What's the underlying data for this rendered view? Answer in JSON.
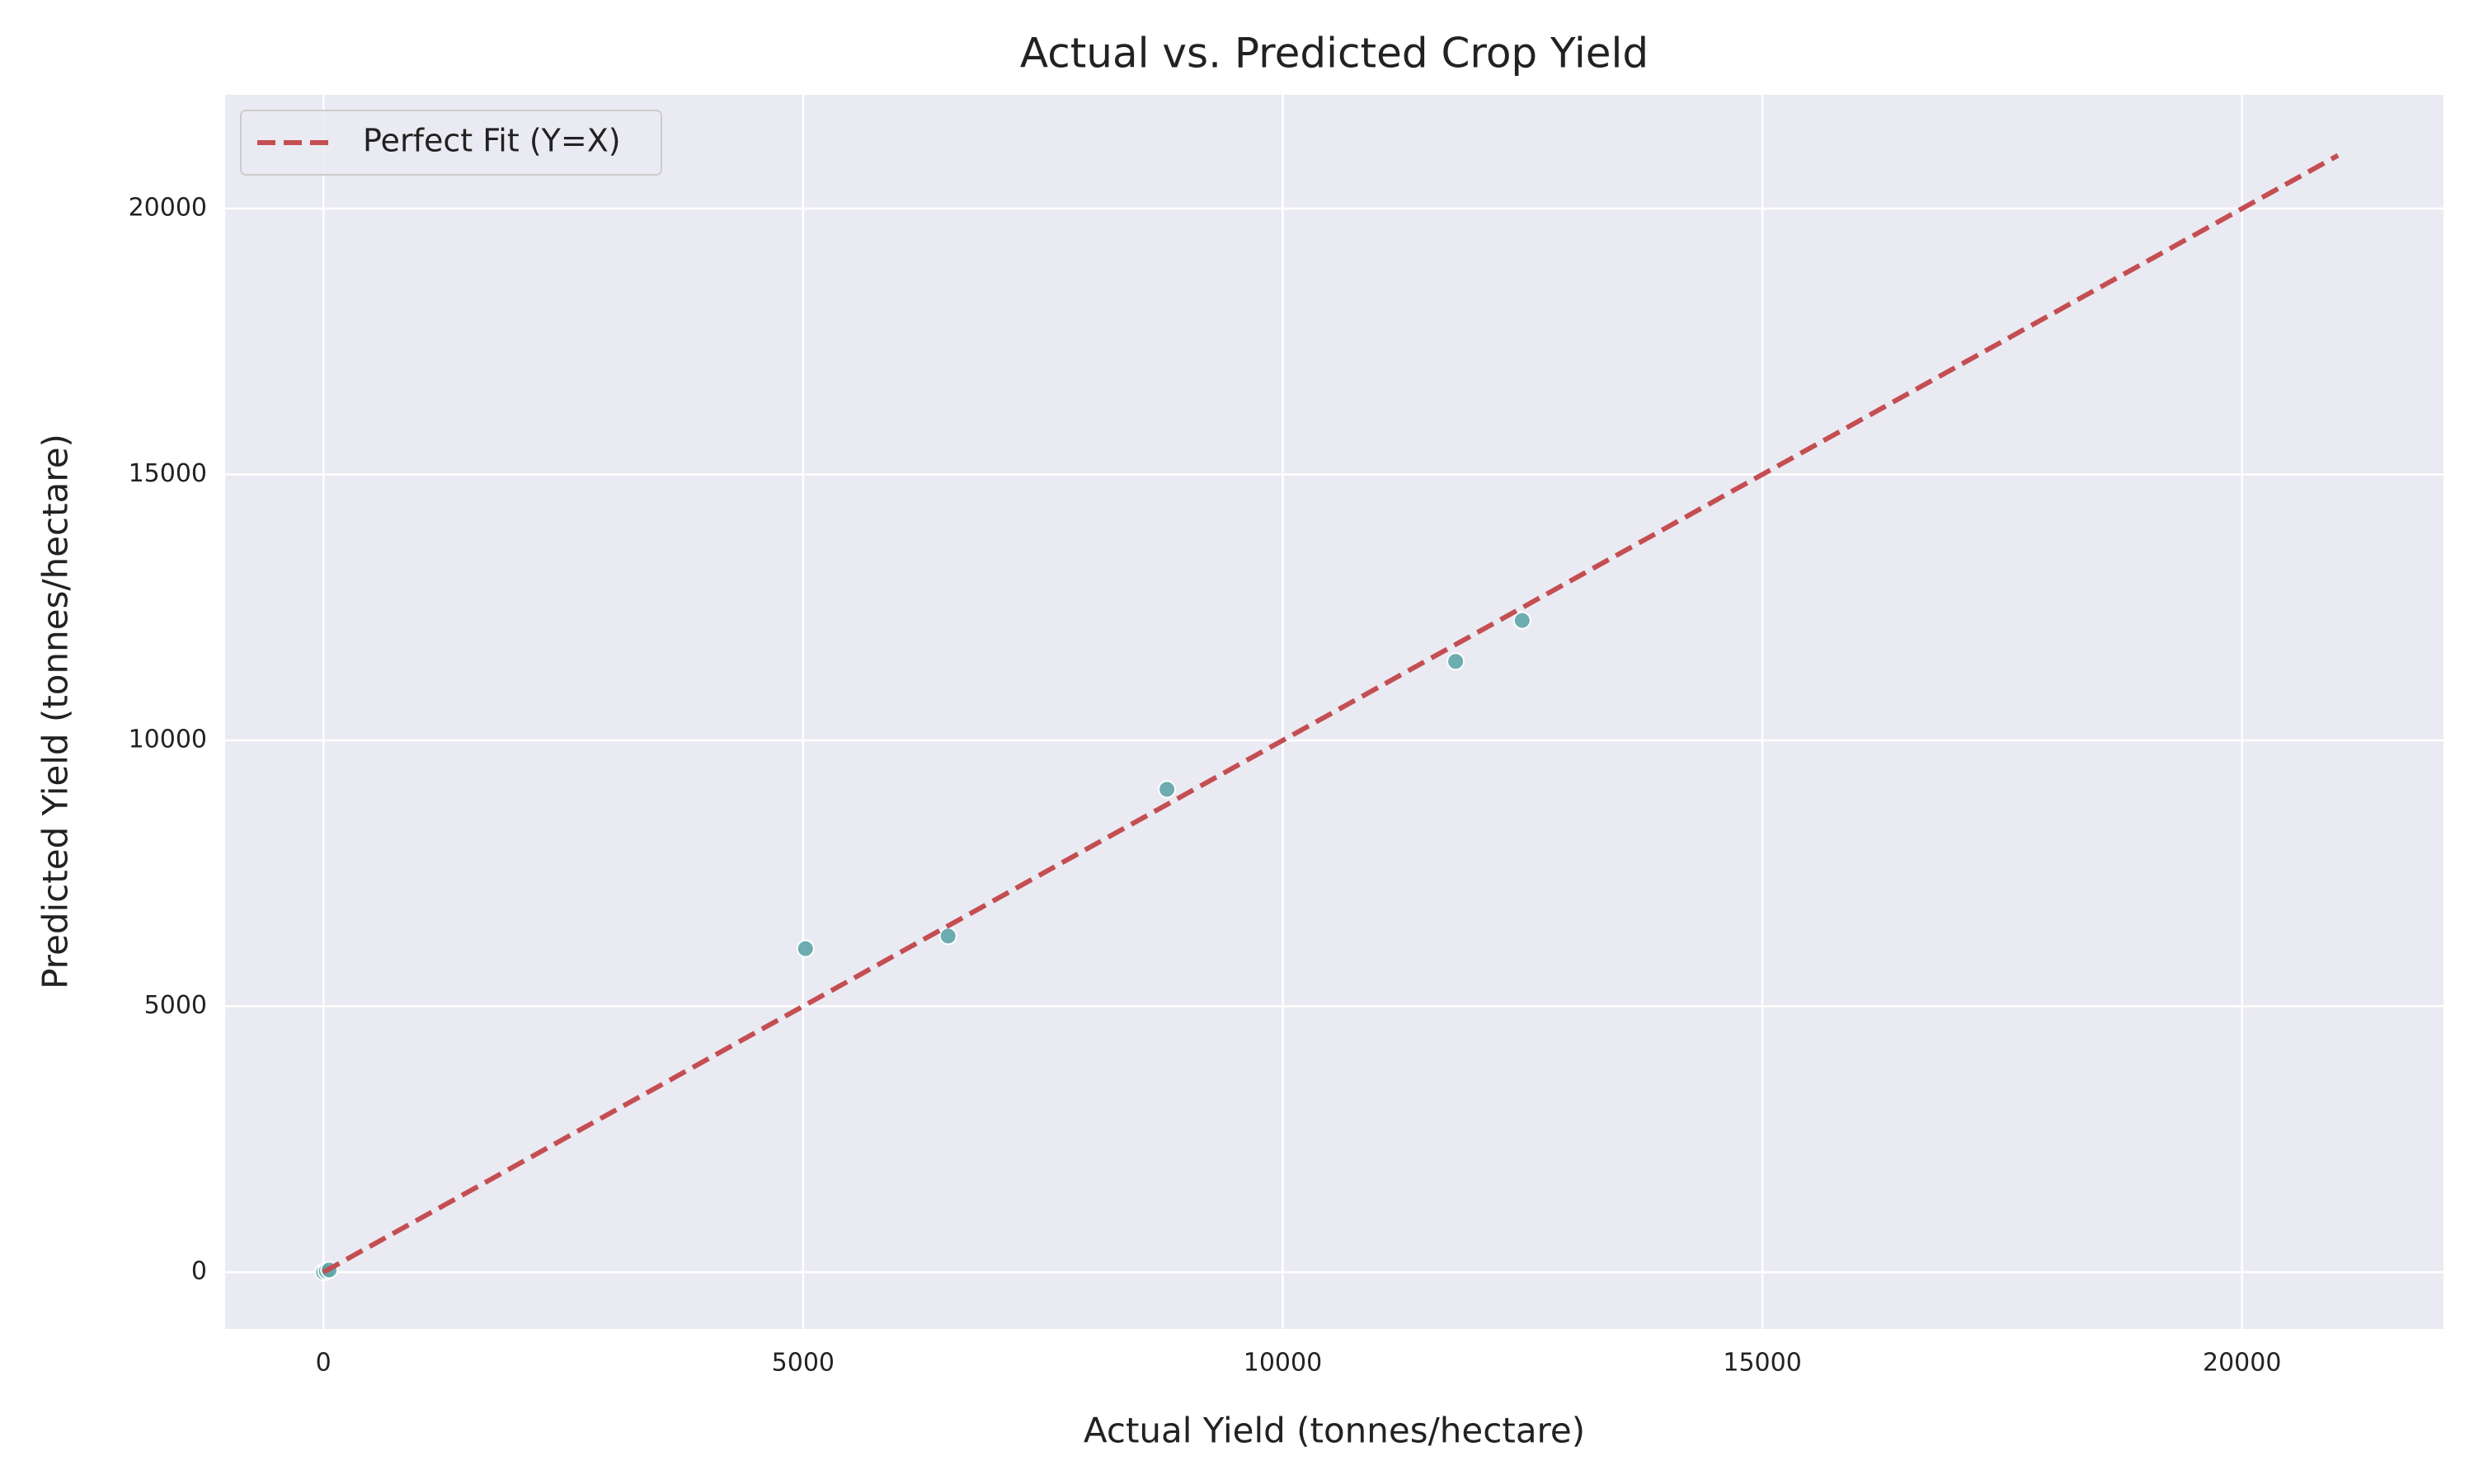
{
  "chart_data": {
    "type": "scatter",
    "title": "Actual vs. Predicted Crop Yield",
    "x_label": "Actual Yield (tonnes/hectare)",
    "y_label": "Predicted Yield (tonnes/hectare)",
    "x": [
      0,
      30,
      60,
      5025,
      6512,
      8793,
      11802,
      12496
    ],
    "values": [
      0,
      20,
      40,
      6083,
      6320,
      9080,
      11484,
      12255
    ],
    "color": "#5fa5a8",
    "series": [
      {
        "name": "Perfect Fit (Y=X)",
        "type": "line",
        "color": "#c44e52",
        "x": [
          0,
          21000
        ],
        "values": [
          0,
          21000
        ]
      }
    ],
    "xlim": [
      -1025,
      22100
    ],
    "ylim": [
      -1070,
      22140
    ],
    "xticks": [
      0,
      5000,
      10000,
      15000,
      20000
    ],
    "yticks": [
      0,
      5000,
      10000,
      15000,
      20000
    ],
    "grid": true,
    "legend": "upper left"
  }
}
